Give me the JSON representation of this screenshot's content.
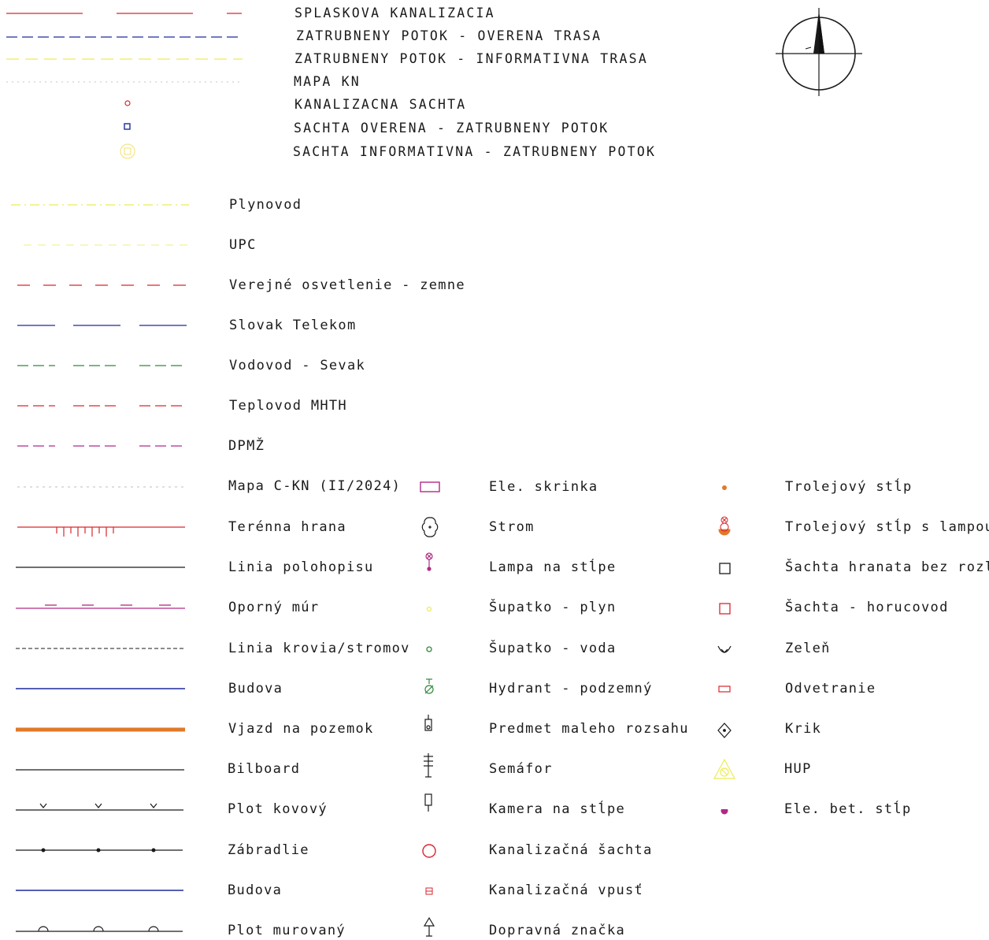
{
  "colors": {
    "red": "#d9262c",
    "blue": "#1e2a9c",
    "yellow": "#ecec55",
    "lightyellow": "#f3f19a",
    "gray": "#b8b8b8",
    "green": "#2f8a3a",
    "magenta": "#b02a86",
    "orange": "#e07a2a",
    "black": "#1a1a1a"
  },
  "compass_icon": "north-arrow-compass",
  "top_legend": [
    {
      "label": "SPLASKOVA KANALIZACIA",
      "symbol": "line-red-long-dash"
    },
    {
      "label": "ZATRUBNENY POTOK - OVERENA TRASA",
      "symbol": "line-blue-dash"
    },
    {
      "label": "ZATRUBNENY POTOK - INFORMATIVNA TRASA",
      "symbol": "line-yellow-dash"
    },
    {
      "label": "MAPA KN",
      "symbol": "line-gray-dotted"
    },
    {
      "label": "KANALIZACNA SACHTA",
      "symbol": "circle-red-small"
    },
    {
      "label": "SACHTA OVERENA - ZATRUBNENY POTOK",
      "symbol": "square-blue-small"
    },
    {
      "label": "SACHTA INFORMATIVNA - ZATRUBNENY POTOK",
      "symbol": "circle-square-yellow"
    }
  ],
  "line_legend": [
    {
      "label": "Plynovod",
      "symbol": "line-yellow-dashdot"
    },
    {
      "label": "UPC",
      "symbol": "line-lightyellow-dash"
    },
    {
      "label": "Verejné osvetlenie - zemne",
      "symbol": "line-red-dash"
    },
    {
      "label": "Slovak Telekom",
      "symbol": "line-blue-dash-long"
    },
    {
      "label": "Vodovod - Sevak",
      "symbol": "line-green-dash3"
    },
    {
      "label": "Teplovod MHTH",
      "symbol": "line-red-dash3"
    },
    {
      "label": "DPMŽ",
      "symbol": "line-magenta-dash3"
    },
    {
      "label": "Mapa C-KN (II/2024)",
      "symbol": "line-gray-dotted"
    },
    {
      "label": "Terénna hrana",
      "symbol": "line-red-ticks"
    },
    {
      "label": "Linia polohopisu",
      "symbol": "line-black-solid"
    },
    {
      "label": "Oporný múr",
      "symbol": "line-magenta-wall"
    },
    {
      "label": "Linia krovia/stromov",
      "symbol": "line-black-fine-dash"
    },
    {
      "label": "Budova",
      "symbol": "line-blue-solid"
    },
    {
      "label": "Vjazd na pozemok",
      "symbol": "line-orange-thick"
    },
    {
      "label": "Bilboard",
      "symbol": "line-black-solid"
    },
    {
      "label": "Plot kovový",
      "symbol": "line-black-x"
    },
    {
      "label": "Zábradlie",
      "symbol": "line-black-dots"
    },
    {
      "label": "Budova",
      "symbol": "line-blue-solid"
    },
    {
      "label": "Plot murovaný",
      "symbol": "line-black-arcs"
    }
  ],
  "point_legend_col2": [
    {
      "label": "Ele. skrinka",
      "symbol": "rect-magenta"
    },
    {
      "label": "Strom",
      "symbol": "tree-black"
    },
    {
      "label": "Lampa na stĺpe",
      "symbol": "lamp-magenta"
    },
    {
      "label": "Šupatko - plyn",
      "symbol": "valve-yellow"
    },
    {
      "label": "Šupatko - voda",
      "symbol": "valve-green"
    },
    {
      "label": "Hydrant - podzemný",
      "symbol": "hydrant-green"
    },
    {
      "label": "Predmet maleho rozsahu",
      "symbol": "small-object-black"
    },
    {
      "label": "Semáfor",
      "symbol": "semaphore-black"
    },
    {
      "label": "Kamera na stĺpe",
      "symbol": "camera-black"
    },
    {
      "label": "Kanalizačná šachta",
      "symbol": "circle-red"
    },
    {
      "label": "Kanalizačná vpusť",
      "symbol": "inlet-red"
    },
    {
      "label": "Dopravná značka",
      "symbol": "traffic-sign-black"
    }
  ],
  "point_legend_col3": [
    {
      "label": "Trolejový stĺp",
      "symbol": "dot-orange"
    },
    {
      "label": "Trolejový stĺp s lampou",
      "symbol": "trolley-lamp"
    },
    {
      "label": "Šachta hranata bez rozl.",
      "symbol": "square-black"
    },
    {
      "label": "Šachta - horucovod",
      "symbol": "square-red"
    },
    {
      "label": "Zeleň",
      "symbol": "grass-black"
    },
    {
      "label": "Odvetranie",
      "symbol": "vent-red"
    },
    {
      "label": "Krik",
      "symbol": "bush-black"
    },
    {
      "label": "HUP",
      "symbol": "hup-yellow"
    },
    {
      "label": "Ele. bet. stĺp",
      "symbol": "pole-magenta"
    }
  ]
}
